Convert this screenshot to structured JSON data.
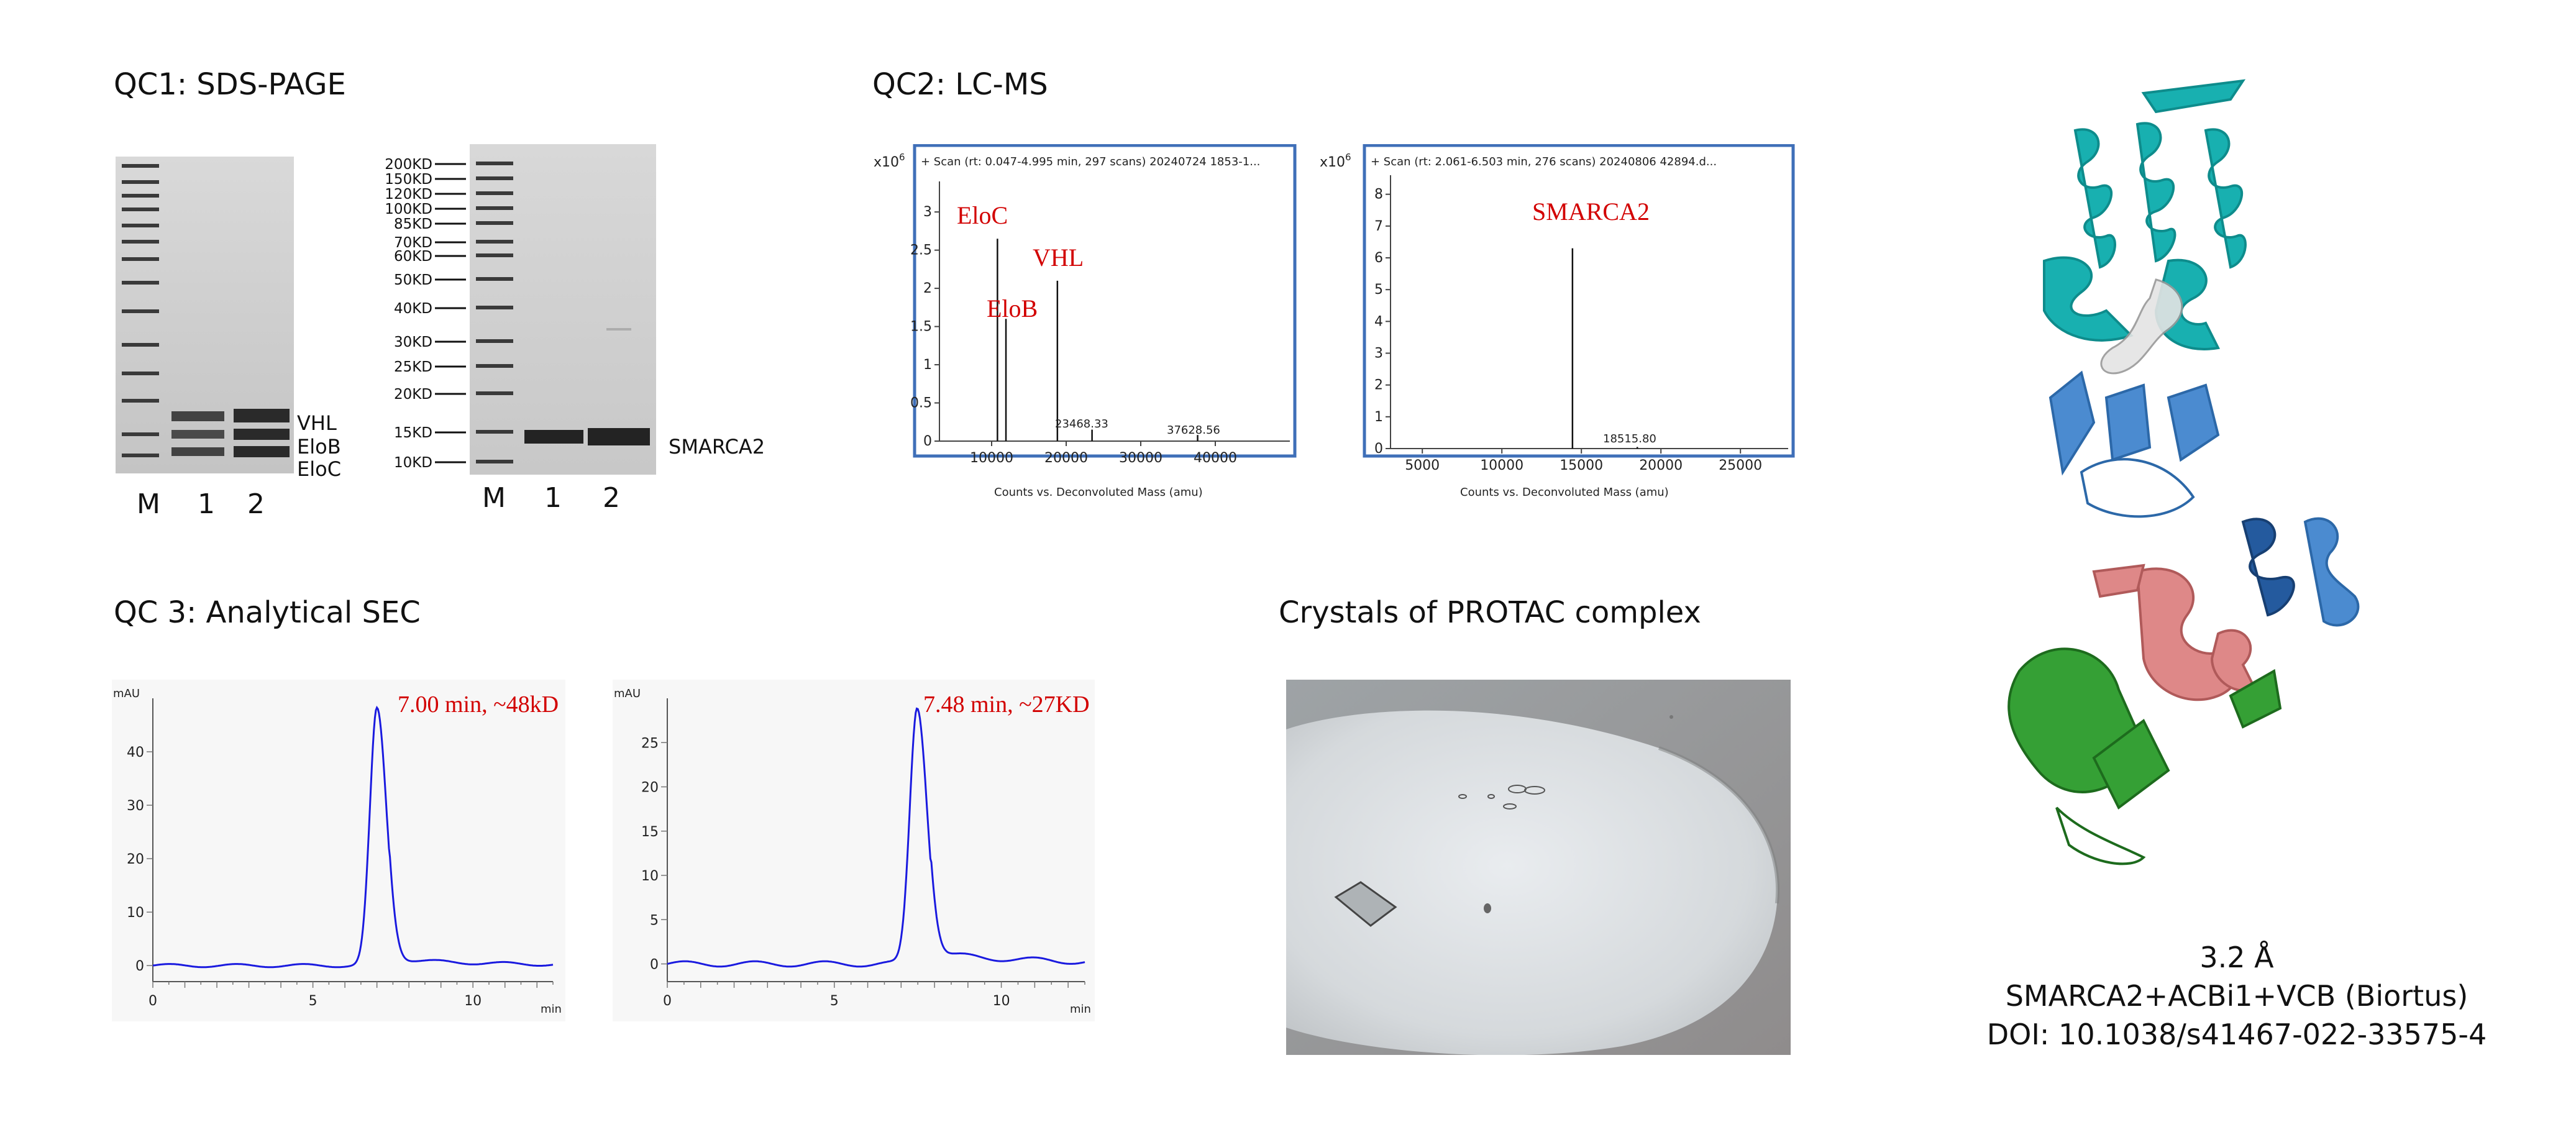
{
  "qc1": {
    "title": "QC1: SDS-PAGE",
    "gel1": {
      "lanes": [
        "M",
        "1",
        "2"
      ],
      "bands": [
        "VHL",
        "EloB",
        "EloC"
      ]
    },
    "gel2": {
      "lanes": [
        "M",
        "1",
        "2"
      ],
      "markers": [
        "200KD",
        "150KD",
        "120KD",
        "100KD",
        "85KD",
        "70KD",
        "60KD",
        "50KD",
        "40KD",
        "30KD",
        "25KD",
        "20KD",
        "15KD",
        "10KD"
      ],
      "band": "SMARCA2"
    }
  },
  "qc2": {
    "title": "QC2: LC-MS",
    "ms1": {
      "scale": "x10",
      "exponent": "6",
      "header": "+ Scan (rt: 0.047-4.995 min, 297 scans) 20240724   1853-1...",
      "xlabel": "Counts vs. Deconvoluted Mass (amu)",
      "xticks": [
        "10000",
        "20000",
        "30000",
        "40000"
      ],
      "yticks": [
        "0",
        "0.5",
        "1",
        "1.5",
        "2",
        "2.5",
        "3"
      ],
      "peak_labels": [
        "EloC",
        "EloB",
        "VHL"
      ],
      "minor_labels": [
        "23468.33",
        "37628.56"
      ]
    },
    "ms2": {
      "scale": "x10",
      "exponent": "6",
      "header": "+ Scan (rt: 2.061-6.503 min, 276 scans) 20240806   42894.d...",
      "xlabel": "Counts vs. Deconvoluted Mass (amu)",
      "xticks": [
        "5000",
        "10000",
        "15000",
        "20000",
        "25000"
      ],
      "yticks": [
        "0",
        "1",
        "2",
        "3",
        "4",
        "5",
        "6",
        "7",
        "8"
      ],
      "peak_label": "SMARCA2",
      "minor_label": "18515.80"
    }
  },
  "qc3": {
    "title": "QC 3: Analytical SEC",
    "sec1": {
      "ylabel": "mAU",
      "xunit": "min",
      "yticks": [
        "0",
        "10",
        "20",
        "30",
        "40"
      ],
      "xticks": [
        "0",
        "5",
        "10"
      ],
      "annotation": "7.00 min, ~48kD"
    },
    "sec2": {
      "ylabel": "mAU",
      "xunit": "min",
      "yticks": [
        "0",
        "5",
        "10",
        "15",
        "20",
        "25"
      ],
      "xticks": [
        "0",
        "5",
        "10"
      ],
      "annotation": "7.48 min, ~27KD"
    }
  },
  "crystals": {
    "title": "Crystals of PROTAC complex"
  },
  "structure": {
    "resolution": "3.2 Å",
    "complex": "SMARCA2+ACBi1+VCB (Biortus)",
    "doi": "DOI: 10.1038/s41467-022-33575-4"
  },
  "colors": {
    "frame": "#3f6fb8",
    "annotation": "#d20000",
    "trace": "#1a1adf",
    "teal": "#14a6a6",
    "blue": "#3d7cc4",
    "darkblue": "#1e4f8f",
    "pink": "#d67a7a",
    "green": "#2e8b2e"
  },
  "chart_data": [
    {
      "type": "bar",
      "name_ref": "ms1",
      "x": [
        10780,
        11920,
        18820,
        23468.33,
        37628.56
      ],
      "values": [
        2.65,
        1.6,
        2.1,
        0.15,
        0.08
      ],
      "xlim": [
        3000,
        50000
      ],
      "ylim": [
        0,
        3.4
      ]
    },
    {
      "type": "bar",
      "name_ref": "ms2",
      "x": [
        14440,
        18515.8
      ],
      "values": [
        6.3,
        0.05
      ],
      "xlim": [
        3000,
        28000
      ],
      "ylim": [
        0,
        8.6
      ]
    },
    {
      "type": "line",
      "name_ref": "sec1",
      "peak_time": 7.0,
      "peak_height": 48,
      "xlim": [
        0,
        12.5
      ],
      "ylim": [
        -3,
        50
      ]
    },
    {
      "type": "line",
      "name_ref": "sec2",
      "peak_time": 7.48,
      "peak_height": 29,
      "xlim": [
        0,
        12.5
      ],
      "ylim": [
        -2,
        30
      ]
    }
  ]
}
